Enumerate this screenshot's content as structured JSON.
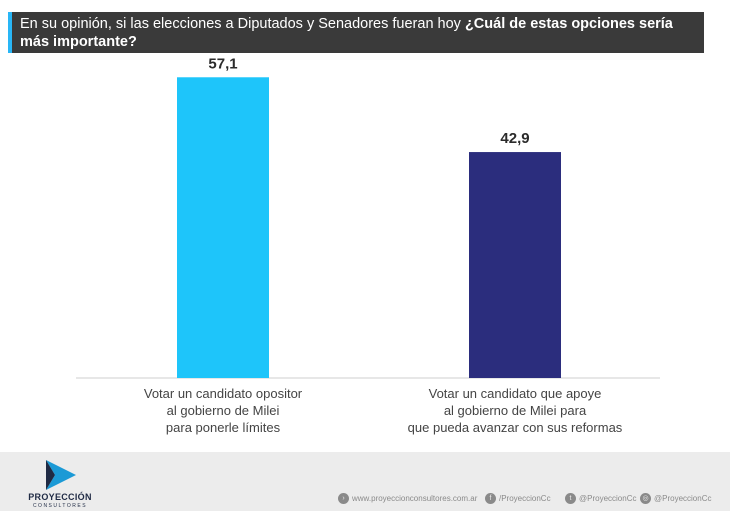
{
  "header": {
    "question_regular": "En su opinión, si las elecciones a Diputados y Senadores fueran hoy ",
    "question_bold": "¿Cuál de estas opciones sería más importante?"
  },
  "chart_data": {
    "type": "bar",
    "categories": [
      "Votar un candidato opositor al gobierno de Milei para ponerle límites",
      "Votar un candidato que apoye al gobierno de Milei para que pueda avanzar con sus reformas"
    ],
    "category_lines": [
      [
        "Votar un candidato opositor",
        "al gobierno de Milei",
        "para ponerle límites"
      ],
      [
        "Votar un candidato que apoye",
        "al gobierno de Milei para",
        "que pueda avanzar con sus reformas"
      ]
    ],
    "values": [
      57.1,
      42.9
    ],
    "value_labels": [
      "57,1",
      "42,9"
    ],
    "colors": [
      "#1ec5fa",
      "#2b2d7d"
    ],
    "ylim": [
      0,
      60
    ],
    "grid": false
  },
  "footer": {
    "brand": "PROYECCIÓN",
    "brand_sub": "CONSULTORES",
    "website": "www.proyeccionconsultores.com.ar",
    "facebook": "/ProyeccionCc",
    "twitter": "@ProyeccionCc",
    "instagram": "@ProyeccionCc"
  }
}
